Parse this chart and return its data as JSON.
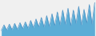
{
  "values": [
    1.5,
    3.0,
    1.6,
    3.2,
    1.7,
    3.4,
    1.8,
    3.6,
    2.0,
    3.8,
    2.1,
    4.2,
    2.3,
    4.6,
    2.5,
    5.0,
    2.4,
    5.5,
    2.6,
    6.0,
    2.8,
    6.5,
    3.0,
    7.0,
    3.2,
    7.5,
    2.8,
    7.0,
    3.4,
    8.0,
    3.0,
    7.2,
    3.5,
    8.5,
    3.2,
    9.0
  ],
  "fill_color": "#5badd6",
  "line_color": "#4a90c4",
  "background_color": "#f0f0f0"
}
